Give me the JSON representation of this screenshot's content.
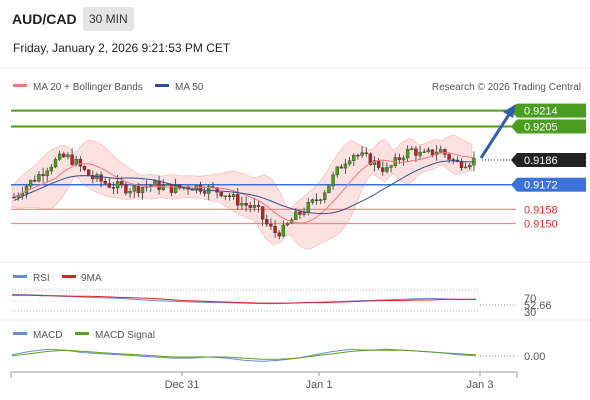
{
  "header": {
    "pair": "AUD/CAD",
    "timeframe": "30 MIN",
    "datetime": "Friday, January 2, 2026 9:21:53 PM CET"
  },
  "legend": {
    "ma20": "MA 20 + Bollinger Bands",
    "ma50": "MA 50",
    "credit": "Research © 2026 Trading Central"
  },
  "colors": {
    "green": "#4a9e1f",
    "blue": "#3a72d8",
    "red": "#f08c8c",
    "dark": "#222222",
    "ma20": "#f07878",
    "ma50": "#2e4f8c",
    "rsi": "#6a8ad8",
    "rsi_ma": "#e02020",
    "macd": "#6a8ad8",
    "macd_signal": "#5aa020"
  },
  "chart_data": [
    {
      "type": "candlestick",
      "ylim": [
        0.9135,
        0.922
      ],
      "levels": [
        {
          "value": 0.9214,
          "label": "0.9214",
          "style": "green-solid"
        },
        {
          "value": 0.9205,
          "label": "0.9205",
          "style": "green-solid"
        },
        {
          "value": 0.9186,
          "label": "0.9186",
          "style": "current-price"
        },
        {
          "value": 0.9172,
          "label": "0.9172",
          "style": "blue-solid"
        },
        {
          "value": 0.9158,
          "label": "0.9158",
          "style": "red-solid"
        },
        {
          "value": 0.915,
          "label": "0.9150",
          "style": "red-solid"
        }
      ],
      "close_path": [
        0.9165,
        0.917,
        0.9174,
        0.9178,
        0.9183,
        0.9186,
        0.9188,
        0.9185,
        0.918,
        0.9176,
        0.9174,
        0.9172,
        0.9171,
        0.917,
        0.917,
        0.9171,
        0.9172,
        0.9171,
        0.917,
        0.917,
        0.9171,
        0.9171,
        0.917,
        0.9169,
        0.9168,
        0.9165,
        0.9162,
        0.916,
        0.9158,
        0.915,
        0.9145,
        0.9146,
        0.9152,
        0.9156,
        0.916,
        0.9164,
        0.917,
        0.9178,
        0.9185,
        0.919,
        0.9188,
        0.9186,
        0.9183,
        0.918,
        0.9185,
        0.919,
        0.9192,
        0.9188,
        0.919,
        0.9192,
        0.9188,
        0.9184,
        0.9185,
        0.9186
      ],
      "indicators": [
        "MA 20",
        "Bollinger Bands",
        "MA 50"
      ]
    },
    {
      "type": "line",
      "title": "",
      "series": [
        {
          "name": "RSI",
          "values": [
            62,
            61,
            60,
            58,
            57,
            56,
            55,
            54,
            52,
            50,
            49,
            48,
            47,
            46,
            46,
            45,
            44,
            44,
            45,
            46,
            47,
            48,
            49,
            50,
            51,
            52,
            53,
            54,
            53,
            52,
            52.66
          ]
        },
        {
          "name": "9MA",
          "values": [
            60,
            60,
            59,
            59,
            58,
            58,
            57,
            56,
            55,
            54,
            52,
            50,
            49,
            48,
            47,
            46,
            45,
            45,
            45,
            46,
            46,
            47,
            48,
            49,
            50,
            50,
            51,
            51,
            52,
            52,
            52
          ]
        }
      ],
      "ticks": [
        "70",
        "30"
      ],
      "current_label": "52.66"
    },
    {
      "type": "line",
      "series": [
        {
          "name": "MACD",
          "values": [
            0.0002,
            0.0005,
            0.0007,
            0.0006,
            0.0004,
            0.0003,
            0.0002,
            0.0001,
            0.0,
            -0.0001,
            -0.0001,
            0.0,
            -0.0001,
            -0.0003,
            -0.0004,
            -0.0003,
            -0.0001,
            0.0002,
            0.0005,
            0.0007,
            0.0006,
            0.0007,
            0.0006,
            0.0005,
            0.0004,
            0.0002,
            0.0001
          ]
        },
        {
          "name": "MACD Signal",
          "values": [
            0.0001,
            0.0003,
            0.0005,
            0.0006,
            0.0005,
            0.0004,
            0.0003,
            0.0002,
            0.0001,
            0.0,
            0.0,
            0.0,
            0.0,
            -0.0001,
            -0.0002,
            -0.0002,
            -0.0001,
            0.0001,
            0.0003,
            0.0005,
            0.0006,
            0.0006,
            0.0006,
            0.0005,
            0.0004,
            0.0003,
            0.0002
          ]
        }
      ],
      "current_label": "0.00"
    }
  ],
  "x_axis": {
    "labels": [
      "Dec 31",
      "Jan 1",
      "Jan 3"
    ]
  }
}
